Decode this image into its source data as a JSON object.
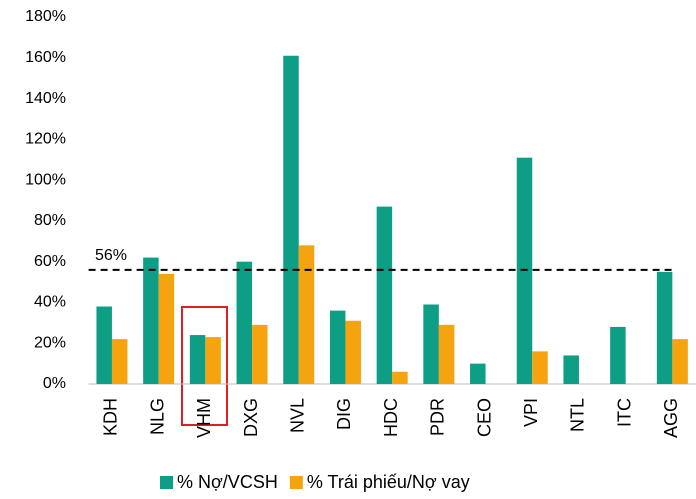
{
  "chart_data": {
    "type": "bar",
    "categories": [
      "KDH",
      "NLG",
      "VHM",
      "DXG",
      "NVL",
      "DIG",
      "HDC",
      "PDR",
      "CEO",
      "VPI",
      "NTL",
      "ITC",
      "AGG"
    ],
    "series": [
      {
        "name": "% Nợ/VCSH",
        "color": "#0e9e85",
        "values": [
          38,
          62,
          24,
          60,
          161,
          36,
          87,
          39,
          10,
          111,
          14,
          28,
          55
        ]
      },
      {
        "name": "% Trái phiếu/Nợ vay",
        "color": "#f5a30f",
        "values": [
          22,
          54,
          23,
          29,
          68,
          31,
          6,
          29,
          null,
          16,
          null,
          null,
          22
        ]
      }
    ],
    "ylim": [
      0,
      180
    ],
    "yticks": [
      {
        "value": 0,
        "label": "0%"
      },
      {
        "value": 20,
        "label": "20%"
      },
      {
        "value": 40,
        "label": "40%"
      },
      {
        "value": 60,
        "label": "60%"
      },
      {
        "value": 80,
        "label": "80%"
      },
      {
        "value": 100,
        "label": "100%"
      },
      {
        "value": 120,
        "label": "120%"
      },
      {
        "value": 140,
        "label": "140%"
      },
      {
        "value": 160,
        "label": "160%"
      },
      {
        "value": 180,
        "label": "180%"
      }
    ],
    "reference_line": {
      "value": 56,
      "label": "56%"
    },
    "legend": "bottom"
  }
}
